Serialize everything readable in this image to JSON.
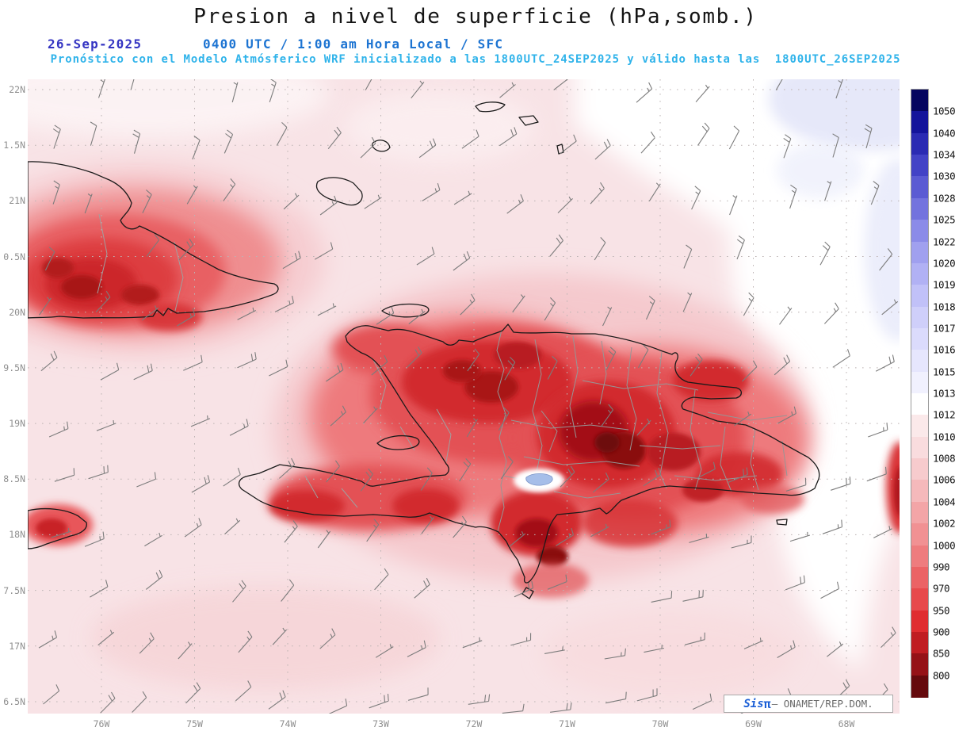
{
  "header": {
    "title": "Presion a nivel de superficie (hPa,somb.)",
    "date": "26-Sep-2025",
    "run_info": "0400 UTC / 1:00 am Hora Local / SFC",
    "model_info": "Pronóstico con el Modelo Atmósferico WRF inicializado a las 1800UTC_24SEP2025 y válido hasta las  1800UTC_26SEP2025"
  },
  "map": {
    "lat_labels": [
      "22N",
      "1.5N",
      "21N",
      "0.5N",
      "20N",
      "9.5N",
      "19N",
      "8.5N",
      "18N",
      "7.5N",
      "17N",
      "6.5N"
    ],
    "lon_labels": [
      "76W",
      "75W",
      "74W",
      "73W",
      "72W",
      "71W",
      "70W",
      "69W",
      "68W"
    ]
  },
  "colorbar": {
    "unit": "hPa",
    "labels": [
      1050,
      1040,
      1034,
      1030,
      1028,
      1025,
      1022,
      1020,
      1019,
      1018,
      1017,
      1016,
      1015,
      1013,
      1012,
      1010,
      1008,
      1006,
      1004,
      1002,
      1000,
      990,
      970,
      950,
      900,
      850,
      800
    ],
    "segment_colors": [
      "#05055f",
      "#14149b",
      "#2b2bb3",
      "#4343c6",
      "#5b5bd3",
      "#7373de",
      "#8b8be8",
      "#a0a0ef",
      "#b1b1f4",
      "#c1c1f8",
      "#cfcffa",
      "#dbdbfc",
      "#e6e6fd",
      "#f1f1fe",
      "#ffffff",
      "#fbe9ea",
      "#f9dcde",
      "#f7cbcd",
      "#f5b9bb",
      "#f3a5a7",
      "#f19193",
      "#ee7c7e",
      "#eb6365",
      "#e74a4c",
      "#e02d30",
      "#c01d22",
      "#951217",
      "#650a0d"
    ]
  },
  "credit": {
    "brand": "Sis",
    "brand_symbol": "π",
    "text": "– ONAMET/REP.DOM."
  }
}
